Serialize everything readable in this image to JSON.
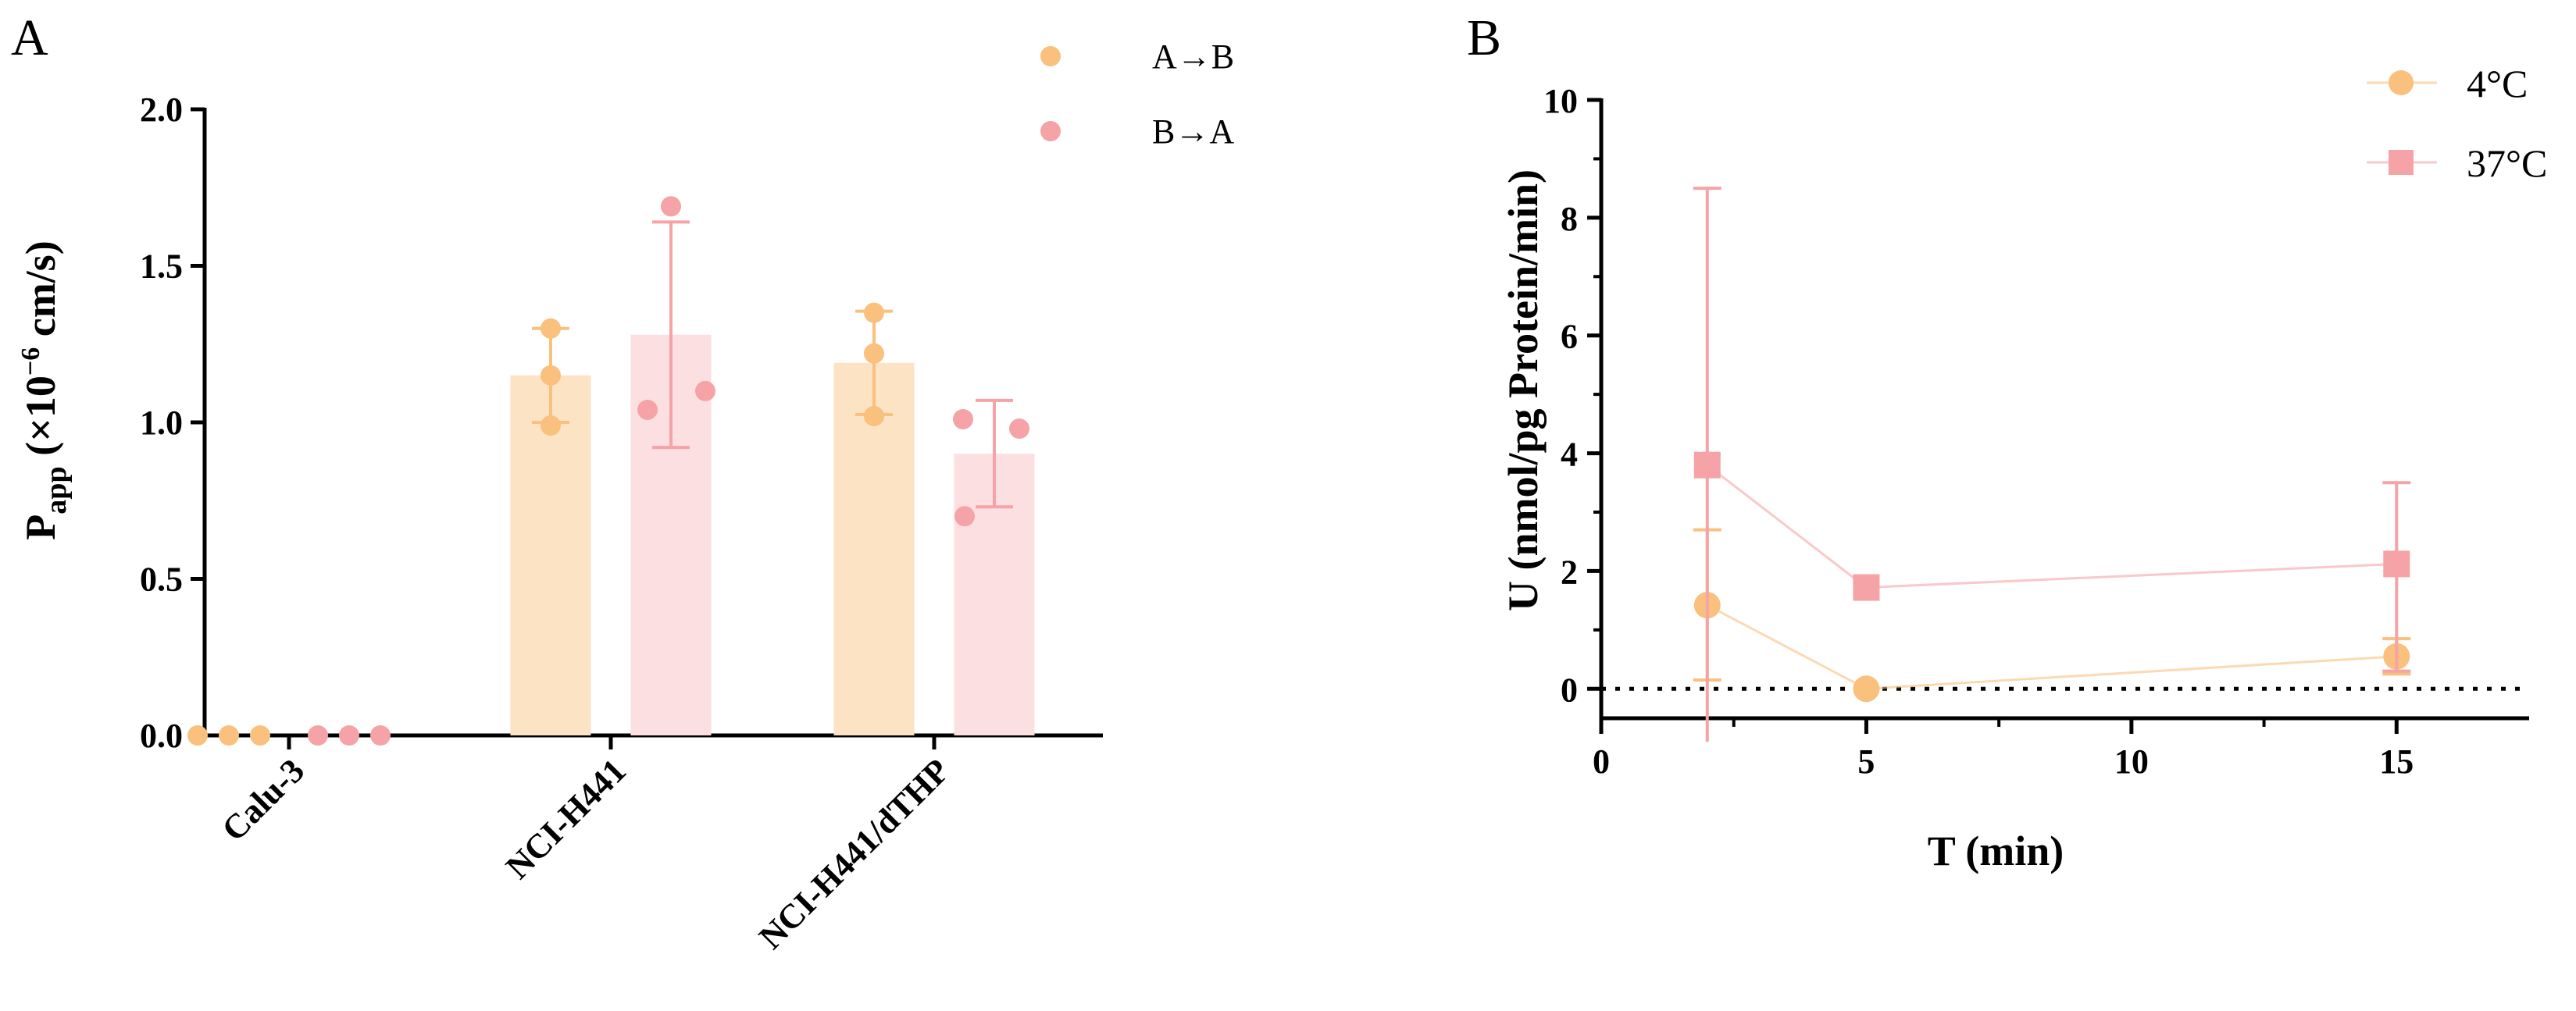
{
  "figure": {
    "panel_a_label": "A",
    "panel_b_label": "B"
  },
  "chart_data": [
    {
      "id": "panel-a",
      "type": "bar",
      "title": "",
      "xlabel": "",
      "ylabel_main": "P",
      "ylabel_sub": "app",
      "ylabel_rest": " (×10",
      "ylabel_exp": "−6",
      "ylabel_unit": " cm/s)",
      "ylim": [
        0,
        2.0
      ],
      "yticks": [
        0.0,
        0.5,
        1.0,
        1.5,
        2.0
      ],
      "ytick_labels": [
        "0.0",
        "0.5",
        "1.0",
        "1.5",
        "2.0"
      ],
      "categories": [
        "Calu-3",
        "NCI-H441",
        "NCI-H441/dTHP"
      ],
      "legend_position": "top-right",
      "series": [
        {
          "name": "A→B",
          "color": "#F9C07E",
          "bar_color": "#FCE3C4",
          "values": [
            0.0,
            1.15,
            1.19
          ],
          "sd": [
            0.0,
            0.15,
            0.165
          ],
          "points": [
            [
              0.0,
              0.0,
              0.0
            ],
            [
              0.99,
              1.15,
              1.3
            ],
            [
              1.02,
              1.22,
              1.35
            ]
          ]
        },
        {
          "name": "B→A",
          "color": "#F5A3A6",
          "bar_color": "#FCE0E1",
          "values": [
            0.0,
            1.28,
            0.9
          ],
          "sd": [
            0.0,
            0.36,
            0.17
          ],
          "points": [
            [
              0.0,
              0.0,
              0.0
            ],
            [
              1.04,
              1.1,
              1.69
            ],
            [
              0.7,
              0.98,
              1.01
            ]
          ]
        }
      ]
    },
    {
      "id": "panel-b",
      "type": "line",
      "title": "",
      "xlabel": "T (min)",
      "ylabel": "U (nmol/pg Protein/min)",
      "xlim": [
        0,
        17.5
      ],
      "ylim": [
        -0.5,
        10
      ],
      "xticks": [
        0,
        5,
        10,
        15
      ],
      "xtick_labels": [
        "0",
        "5",
        "10",
        "15"
      ],
      "yticks": [
        0,
        2,
        4,
        6,
        8,
        10
      ],
      "ytick_labels": [
        "0",
        "2",
        "4",
        "6",
        "8",
        "10"
      ],
      "reference_line": 0,
      "legend_position": "top-right",
      "series": [
        {
          "name": "4°C",
          "marker": "circle",
          "color": "#F9C07E",
          "x": [
            2,
            5,
            15
          ],
          "y": [
            1.42,
            0.0,
            0.55
          ],
          "err_low": [
            1.27,
            0.0,
            0.3
          ],
          "err_high": [
            1.28,
            0.0,
            0.3
          ]
        },
        {
          "name": "37°C",
          "marker": "square",
          "color": "#F5A3A6",
          "x": [
            2,
            5,
            15
          ],
          "y": [
            3.8,
            1.72,
            2.12
          ],
          "err_low": [
            4.7,
            0.0,
            1.82
          ],
          "err_high": [
            4.7,
            0.0,
            1.38
          ]
        }
      ]
    }
  ]
}
